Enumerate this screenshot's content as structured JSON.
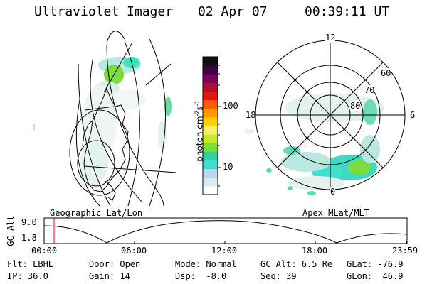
{
  "header": {
    "instrument": "Ultraviolet Imager",
    "date": "02 Apr 07",
    "time": "00:39:11 UT"
  },
  "colorbar": {
    "label": "photon cm^-2 s^-1",
    "label_base": "photon cm",
    "label_exp1": "-2",
    "label_mid": "s",
    "label_exp2": "-1",
    "ticks": [
      "100",
      "10"
    ],
    "colors": [
      "#ffffff",
      "#dce9f4",
      "#b8d8ee",
      "#40e0d0",
      "#30d0a0",
      "#7bdc3c",
      "#c6ea2a",
      "#f5f06a",
      "#ffd000",
      "#ff9a00",
      "#ff5a00",
      "#e01818",
      "#b01030",
      "#800060",
      "#400040",
      "#101010"
    ]
  },
  "polar": {
    "lat_labels": [
      "60",
      "70",
      "80"
    ],
    "mlt_labels": [
      "12",
      "18",
      "6",
      "0"
    ]
  },
  "panel_labels": {
    "left": "Geographic Lat/Lon",
    "right": "Apex MLat/MLT"
  },
  "timeline": {
    "axis_label": "GC Alt",
    "y_labels": [
      "9.0",
      "1.8"
    ],
    "x_labels": [
      "00:00",
      "06:00",
      "12:00",
      "18:00",
      "23:59"
    ],
    "marker_color": "#ff0000"
  },
  "info": {
    "row1": [
      "Flt: LBHL",
      "Door: Open",
      "Mode: Normal",
      "GC Alt: 6.5 Re",
      "GLat: -76.9"
    ],
    "row2": [
      "IP: 36.0",
      "Gain: 14",
      "Dsp:  -8.0",
      "Seq: 39",
      "GLon:  46.9"
    ]
  }
}
